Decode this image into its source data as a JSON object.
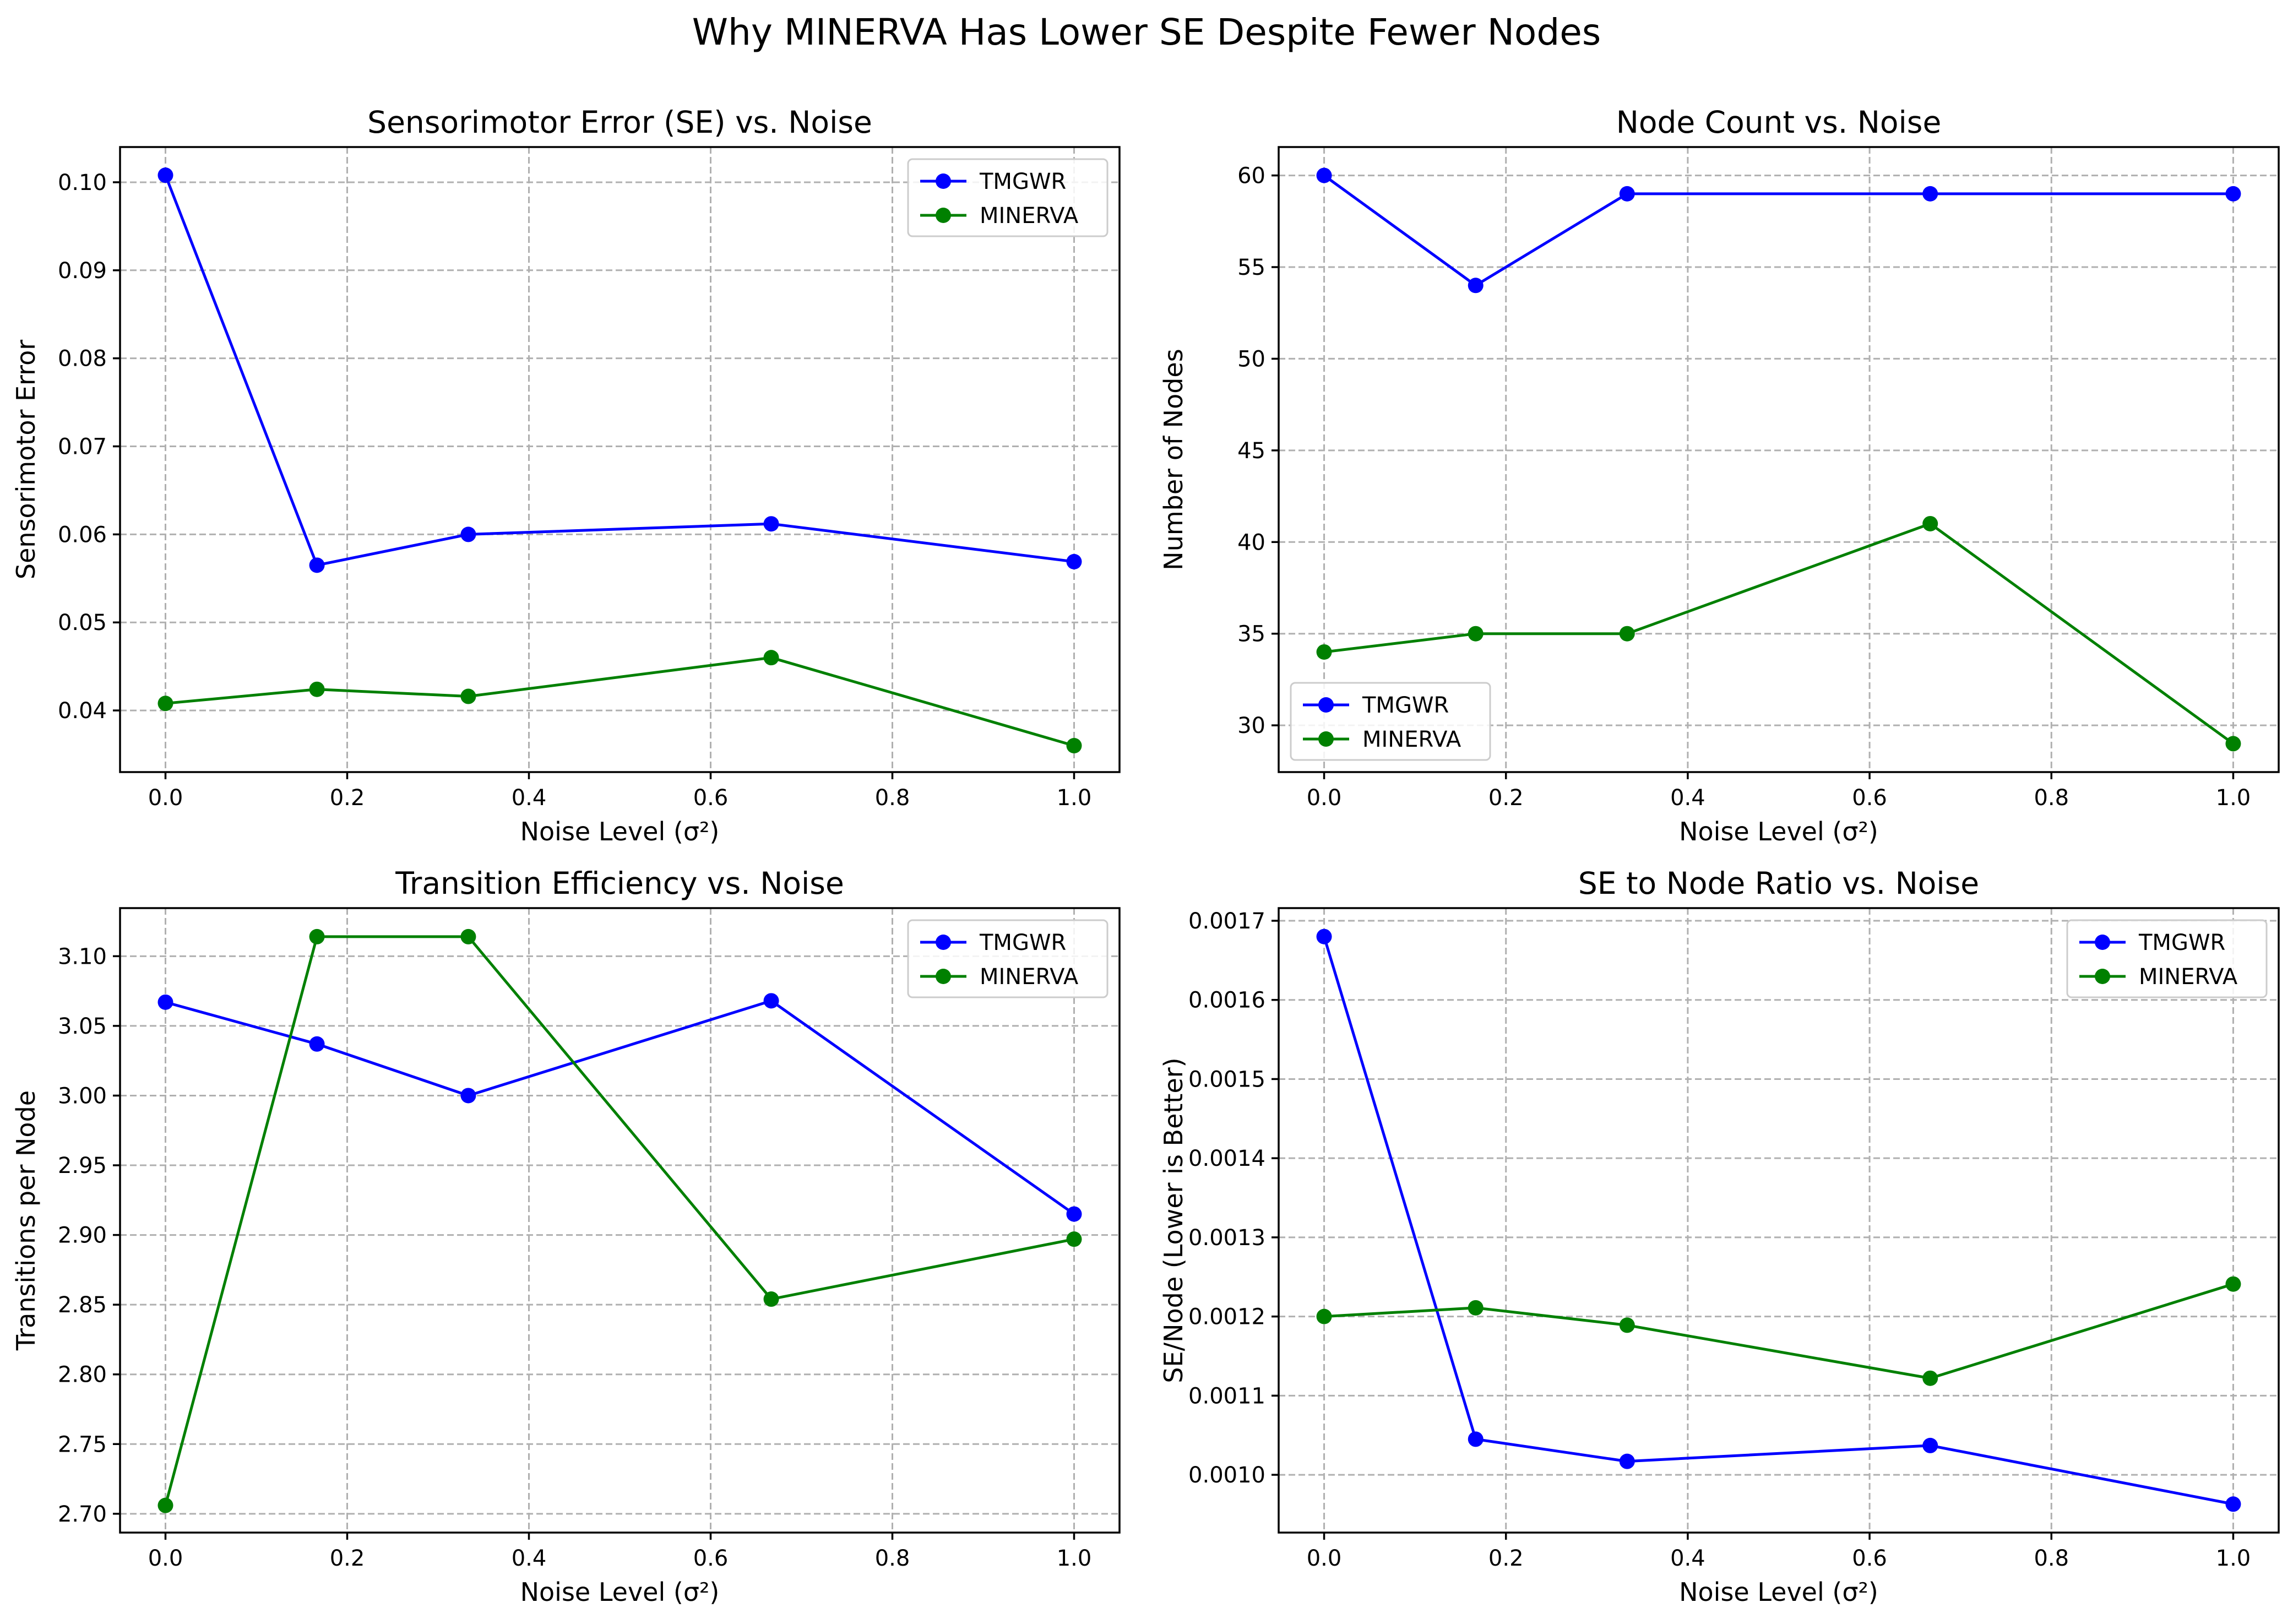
{
  "suptitle": "Why MINERVA Has Lower SE Despite Fewer Nodes",
  "colors": {
    "TMGWR": "#0000ff",
    "MINERVA": "#008000"
  },
  "chart_data": [
    {
      "type": "line",
      "title": "Sensorimotor Error (SE) vs. Noise",
      "xlabel": "Noise Level (σ²)",
      "ylabel": "Sensorimotor Error",
      "x": [
        0.0,
        0.1667,
        0.3333,
        0.6667,
        1.0
      ],
      "xlim": [
        -0.05,
        1.05
      ],
      "ylim": [
        0.033,
        0.104
      ],
      "xticks": [
        "0.0",
        "0.2",
        "0.4",
        "0.6",
        "0.8",
        "1.0"
      ],
      "yticks": [
        "0.04",
        "0.05",
        "0.06",
        "0.07",
        "0.08",
        "0.09",
        "0.10"
      ],
      "legend": "top-right",
      "grid": true,
      "series": [
        {
          "name": "TMGWR",
          "values": [
            0.1008,
            0.0565,
            0.06,
            0.0612,
            0.0569
          ]
        },
        {
          "name": "MINERVA",
          "values": [
            0.0408,
            0.0424,
            0.0416,
            0.046,
            0.036
          ]
        }
      ]
    },
    {
      "type": "line",
      "title": "Node Count vs. Noise",
      "xlabel": "Noise Level (σ²)",
      "ylabel": "Number of Nodes",
      "x": [
        0.0,
        0.1667,
        0.3333,
        0.6667,
        1.0
      ],
      "xlim": [
        -0.05,
        1.05
      ],
      "ylim": [
        27.45,
        61.55
      ],
      "xticks": [
        "0.0",
        "0.2",
        "0.4",
        "0.6",
        "0.8",
        "1.0"
      ],
      "yticks": [
        "30",
        "35",
        "40",
        "45",
        "50",
        "55",
        "60"
      ],
      "legend": "bottom-left",
      "grid": true,
      "series": [
        {
          "name": "TMGWR",
          "values": [
            60,
            54,
            59,
            59,
            59
          ]
        },
        {
          "name": "MINERVA",
          "values": [
            34,
            35,
            35,
            41,
            29
          ]
        }
      ]
    },
    {
      "type": "line",
      "title": "Transition Efficiency vs. Noise",
      "xlabel": "Noise Level (σ²)",
      "ylabel": "Transitions per Node",
      "x": [
        0.0,
        0.1667,
        0.3333,
        0.6667,
        1.0
      ],
      "xlim": [
        -0.05,
        1.05
      ],
      "ylim": [
        2.6865,
        3.1345
      ],
      "xticks": [
        "0.0",
        "0.2",
        "0.4",
        "0.6",
        "0.8",
        "1.0"
      ],
      "yticks": [
        "2.70",
        "2.75",
        "2.80",
        "2.85",
        "2.90",
        "2.95",
        "3.00",
        "3.05",
        "3.10"
      ],
      "legend": "top-right",
      "grid": true,
      "series": [
        {
          "name": "TMGWR",
          "values": [
            3.067,
            3.037,
            3.0,
            3.068,
            2.915
          ]
        },
        {
          "name": "MINERVA",
          "values": [
            2.706,
            3.114,
            3.114,
            2.854,
            2.897
          ]
        }
      ]
    },
    {
      "type": "line",
      "title": "SE to Node Ratio vs. Noise",
      "xlabel": "Noise Level (σ²)",
      "ylabel": "SE/Node (Lower is Better)",
      "x": [
        0.0,
        0.1667,
        0.3333,
        0.6667,
        1.0
      ],
      "xlim": [
        -0.05,
        1.05
      ],
      "ylim": [
        0.000927,
        0.001716
      ],
      "xticks": [
        "0.0",
        "0.2",
        "0.4",
        "0.6",
        "0.8",
        "1.0"
      ],
      "yticks": [
        "0.0010",
        "0.0011",
        "0.0012",
        "0.0013",
        "0.0014",
        "0.0015",
        "0.0016",
        "0.0017"
      ],
      "legend": "top-right",
      "grid": true,
      "series": [
        {
          "name": "TMGWR",
          "values": [
            0.00168,
            0.001045,
            0.001017,
            0.001037,
            0.000963
          ]
        },
        {
          "name": "MINERVA",
          "values": [
            0.0012,
            0.001211,
            0.001189,
            0.001122,
            0.001241
          ]
        }
      ]
    }
  ]
}
